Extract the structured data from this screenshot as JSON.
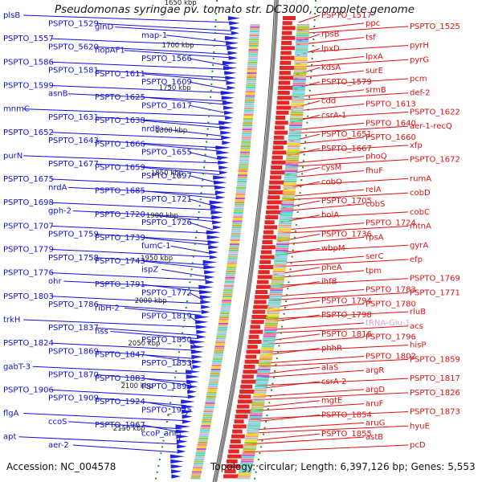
{
  "title": "Pseudomonas syringae pv. tomato str. DC3000, complete genome",
  "footer": {
    "accession": "Accession: NC_004578",
    "summary": "Topology: circular; Length: 6,397,126 bp; Genes: 5,553"
  },
  "colors": {
    "minus_strand": "#1010e0",
    "plus_strand": "#e01010",
    "rna": "#e8a0d0",
    "backbone": "#888888",
    "dotted_ring": "#2a8a2a"
  },
  "ticks": [
    "1650 kbp",
    "1700 kbp",
    "1750 kbp",
    "1800 kbp",
    "1850 kbp",
    "1900 kbp",
    "1950 kbp",
    "2000 kbp",
    "2050 kbp",
    "2100 kbp",
    "2150 kbp"
  ],
  "left_labels": [
    "plsB",
    "PSPTO_1529",
    "glnD",
    "map-1",
    "PSPTO_1557",
    "PSPTO_5620",
    "hopAF1",
    "PSPTO_1566",
    "PSPTO_1586",
    "PSPTO_1581",
    "PSPTO_1611",
    "PSPTO_1609",
    "PSPTO_1599",
    "asnB",
    "PSPTO_1625",
    "PSPTO_1617",
    "mnmC",
    "PSPTO_1631",
    "PSPTO_1638",
    "nrdB",
    "PSPTO_1652",
    "PSPTO_1643",
    "PSPTO_1666",
    "PSPTO_1655",
    "purN",
    "PSPTO_1677",
    "PSPTO_1659",
    "PSPTO_1697",
    "PSPTO_1675",
    "nrdA",
    "PSPTO_1685",
    "PSPTO_1721",
    "PSPTO_1698",
    "gph-2",
    "PSPTO_1720",
    "PSPTO_1726",
    "PSPTO_1707",
    "PSPTO_1759",
    "PSPTO_1739",
    "fumC-1",
    "PSPTO_1779",
    "PSPTO_1758",
    "PSPTO_1743",
    "ispZ",
    "PSPTO_1776",
    "ohr",
    "PSPTO_1791",
    "PSPTO_1772",
    "PSPTO_1803",
    "PSPTO_1786",
    "ribH-2",
    "PSPTO_1819",
    "trkH",
    "PSPTO_1837",
    "hss",
    "PSPTO_1850",
    "PSPTO_1824",
    "PSPTO_1869",
    "PSPTO_1847",
    "PSPTO_1853",
    "gabT-3",
    "PSPTO_1870",
    "PSPTO_1883",
    "PSPTO_1893",
    "PSPTO_1906",
    "PSPTO_1909",
    "PSPTO_1924",
    "PSPTO_1925",
    "flgA",
    "ccoS",
    "PSPTO_1967",
    "ccoP_anr",
    "apt",
    "aer-2"
  ],
  "right_labels": [
    "PSPTO_1517",
    "ppc",
    "PSPTO_1525",
    "rpsB",
    "tsf",
    "pyrH",
    "lpxD",
    "lpxA",
    "pyrG",
    "kdsA",
    "surE",
    "pcm",
    "PSPTO_1579",
    "srmB",
    "def-2",
    "cdd",
    "PSPTO_1613",
    "PSPTO_1622",
    "csrA-1",
    "PSPTO_1640",
    "aer-1-recQ",
    "PSPTO_1651",
    "PSPTO_1660",
    "xfp",
    "PSPTO_1667",
    "phoQ",
    "PSPTO_1672",
    "cysM",
    "fhuF",
    "rumA",
    "cobO",
    "relA",
    "cobD",
    "PSPTO_1705",
    "cobS",
    "cobC",
    "bolA",
    "PSPTO_1724",
    "mtnA",
    "PSPTO_1736",
    "rpsA",
    "gyrA",
    "wbpM",
    "serC",
    "efp",
    "pheA",
    "tpm",
    "PSPTO_1769",
    "ihfB",
    "PSPTO_1783",
    "PSPTO_1771",
    "PSPTO_1794",
    "PSPTO_1780",
    "rluB",
    "PSPTO_1798",
    "tRNA-Glu-1",
    "acs",
    "PSPTO_1816",
    "PSPTO_1796",
    "hisP",
    "phhR",
    "PSPTO_1802",
    "PSPTO_1859",
    "alaS",
    "argR",
    "PSPTO_1817",
    "csrA-2",
    "argD",
    "PSPTO_1826",
    "mgtE",
    "aruF",
    "PSPTO_1873",
    "PSPTO_1854",
    "aruG",
    "hyuE",
    "PSPTO_1855",
    "astB",
    "pcD"
  ]
}
